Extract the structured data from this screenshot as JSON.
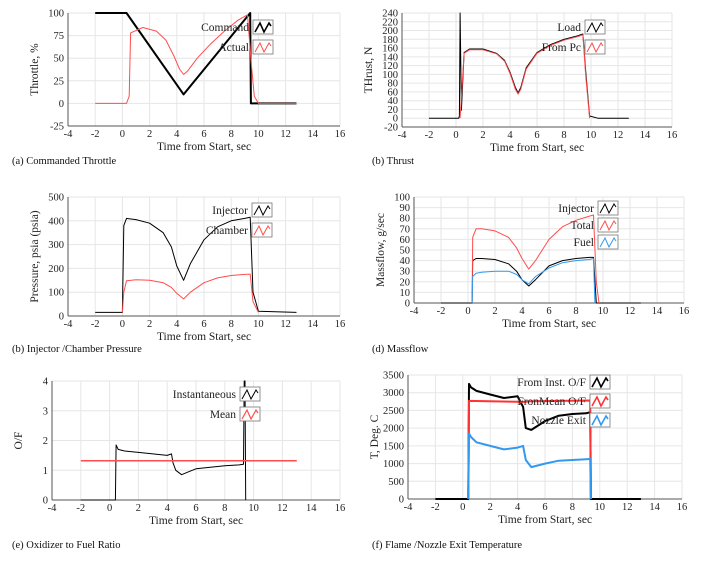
{
  "panels": [
    {
      "caption": "(a) Commanded Throttle",
      "chart_data": {
        "type": "line",
        "xlabel": "Time from  Start, sec",
        "ylabel": "Throttle, %",
        "xlim": [
          -4,
          16
        ],
        "ylim": [
          -25,
          100
        ],
        "xticks": [
          "-4",
          "-2",
          "0",
          "2",
          "4",
          "6",
          "8",
          "10",
          "12",
          "14",
          "16"
        ],
        "yticks": [
          "-25",
          "0",
          "25",
          "50",
          "75",
          "100"
        ],
        "series": [
          {
            "name": "Command",
            "color": "#000000",
            "width": 2,
            "x": [
              -2,
              0.3,
              4.5,
              9.4,
              9.45,
              12.8
            ],
            "y": [
              100,
              100,
              10,
              100,
              0,
              0
            ]
          },
          {
            "name": "Actual",
            "color": "#ff4d4d",
            "width": 1,
            "x": [
              -2,
              0.3,
              0.5,
              0.6,
              1.5,
              2.5,
              3.2,
              3.8,
              4.2,
              4.5,
              4.8,
              5.5,
              6.5,
              7.5,
              8.5,
              9.2,
              9.5,
              9.7,
              10,
              12.8
            ],
            "y": [
              0,
              0,
              8,
              78,
              84,
              80,
              70,
              52,
              38,
              32,
              36,
              50,
              66,
              80,
              92,
              98,
              40,
              8,
              0,
              0
            ]
          }
        ]
      }
    },
    {
      "caption": "(b) Thrust",
      "chart_data": {
        "type": "line",
        "xlabel": "Time from  Start, sec",
        "ylabel": "THrust, N",
        "xlim": [
          -4,
          16
        ],
        "ylim": [
          -20,
          240
        ],
        "xticks": [
          "-4",
          "-2",
          "0",
          "2",
          "4",
          "6",
          "8",
          "10",
          "12",
          "14",
          "16"
        ],
        "yticks": [
          "-20",
          "0",
          "20",
          "40",
          "60",
          "80",
          "100",
          "120",
          "140",
          "160",
          "180",
          "200",
          "220",
          "240"
        ],
        "series": [
          {
            "name": "Load",
            "color": "#000000",
            "width": 1,
            "x": [
              -2,
              0.2,
              0.25,
              0.3,
              0.4,
              0.6,
              1,
              2,
              3,
              3.6,
              4,
              4.4,
              4.6,
              4.8,
              5.2,
              6,
              7,
              8,
              9,
              9.4,
              9.6,
              9.9,
              10.5,
              12.8
            ],
            "y": [
              0,
              0,
              5,
              240,
              18,
              150,
              158,
              158,
              148,
              132,
              105,
              70,
              58,
              70,
              115,
              150,
              168,
              180,
              188,
              192,
              110,
              5,
              0,
              0
            ]
          },
          {
            "name": "From Pc",
            "color": "#ff4d4d",
            "width": 1,
            "x": [
              0.3,
              0.6,
              1,
              2,
              3,
              3.6,
              4,
              4.4,
              4.6,
              4.8,
              5.2,
              6,
              7,
              8,
              9,
              9.4,
              9.6,
              9.9
            ],
            "y": [
              0,
              148,
              156,
              156,
              147,
              130,
              102,
              66,
              55,
              66,
              112,
              148,
              166,
              178,
              186,
              190,
              100,
              0
            ]
          }
        ]
      }
    },
    {
      "caption": "(b) Injector /Chamber Pressure",
      "chart_data": {
        "type": "line",
        "xlabel": "Time from  Start, sec",
        "ylabel": "Pressure, psia (psia)",
        "xlim": [
          -4,
          16
        ],
        "ylim": [
          0,
          500
        ],
        "xticks": [
          "-4",
          "-2",
          "0",
          "2",
          "4",
          "6",
          "8",
          "10",
          "12",
          "14",
          "16"
        ],
        "yticks": [
          "0",
          "100",
          "200",
          "300",
          "400",
          "500"
        ],
        "series": [
          {
            "name": "Injector",
            "color": "#000000",
            "width": 1,
            "x": [
              -2,
              0,
              0.1,
              0.3,
              1,
              2,
              3,
              3.6,
              4,
              4.5,
              5,
              6,
              7,
              8,
              9,
              9.4,
              9.6,
              10,
              12.8
            ],
            "y": [
              15,
              15,
              380,
              410,
              405,
              390,
              350,
              290,
              210,
              150,
              220,
              320,
              375,
              400,
              410,
              415,
              100,
              20,
              15
            ]
          },
          {
            "name": "Chamber",
            "color": "#ff4d4d",
            "width": 1,
            "x": [
              0,
              0.1,
              0.3,
              1,
              2,
              3,
              3.6,
              4,
              4.5,
              5,
              6,
              7,
              8,
              9,
              9.4,
              9.6,
              10
            ],
            "y": [
              15,
              100,
              148,
              152,
              150,
              140,
              120,
              95,
              72,
              100,
              140,
              160,
              170,
              175,
              176,
              60,
              15
            ]
          }
        ]
      }
    },
    {
      "caption": "(d) Massflow",
      "chart_data": {
        "type": "line",
        "xlabel": "Time from  Start, sec",
        "ylabel": "Massflow, g/sec",
        "xlim": [
          -4,
          16
        ],
        "ylim": [
          0,
          100
        ],
        "xticks": [
          "-4",
          "-2",
          "0",
          "2",
          "4",
          "6",
          "8",
          "10",
          "12",
          "14",
          "16"
        ],
        "yticks": [
          "0",
          "10",
          "20",
          "30",
          "40",
          "50",
          "60",
          "70",
          "80",
          "90",
          "100"
        ],
        "series": [
          {
            "name": "Injector",
            "color": "#000000",
            "width": 1,
            "x": [
              -2,
              0.3,
              0.35,
              0.6,
              1,
              2,
              3,
              3.6,
              4,
              4.5,
              5,
              6,
              7,
              8,
              9,
              9.3,
              9.5,
              10,
              12.8
            ],
            "y": [
              0,
              0,
              40,
              42,
              42,
              41,
              37,
              30,
              22,
              16,
              22,
              35,
              40,
              42,
              43,
              43,
              0,
              0,
              0
            ]
          },
          {
            "name": "Total",
            "color": "#ff4d4d",
            "width": 1,
            "x": [
              0.3,
              0.35,
              0.6,
              1,
              2,
              3,
              3.6,
              4,
              4.5,
              5,
              6,
              7,
              8,
              9,
              9.3,
              9.5,
              9.7
            ],
            "y": [
              0,
              62,
              70,
              70,
              68,
              62,
              52,
              42,
              32,
              40,
              60,
              72,
              78,
              82,
              83,
              20,
              0
            ]
          },
          {
            "name": "Fuel",
            "color": "#3399ee",
            "width": 1,
            "x": [
              0.3,
              0.35,
              0.6,
              1,
              2,
              3,
              3.6,
              4,
              4.5,
              5,
              6,
              7,
              8,
              9,
              9.3,
              9.4
            ],
            "y": [
              0,
              25,
              28,
              29,
              30,
              30,
              27,
              22,
              18,
              25,
              33,
              38,
              40,
              41,
              42,
              0
            ]
          }
        ]
      }
    },
    {
      "caption": "(e) Oxidizer to Fuel Ratio",
      "chart_data": {
        "type": "line",
        "xlabel": "Time from  Start, sec",
        "ylabel": "O/F",
        "xlim": [
          -4,
          16
        ],
        "ylim": [
          0,
          4
        ],
        "xticks": [
          "-4",
          "-2",
          "0",
          "2",
          "4",
          "6",
          "8",
          "10",
          "12",
          "14",
          "16"
        ],
        "yticks": [
          "0",
          "1",
          "2",
          "3",
          "4"
        ],
        "series": [
          {
            "name": "Instantaneous",
            "color": "#000000",
            "width": 1,
            "x": [
              -2,
              0.4,
              0.45,
              0.6,
              1,
              2,
              3,
              4,
              4.3,
              4.4,
              4.6,
              5,
              5.5,
              6,
              7,
              8,
              9,
              9.3,
              9.35,
              9.4,
              9.45
            ],
            "y": [
              0,
              0,
              1.85,
              1.7,
              1.65,
              1.6,
              1.55,
              1.5,
              1.55,
              1.25,
              1.0,
              0.85,
              0.95,
              1.05,
              1.1,
              1.15,
              1.18,
              1.2,
              4,
              4,
              0
            ]
          },
          {
            "name": "Mean",
            "color": "#ff4d4d",
            "width": 1.5,
            "x": [
              -2,
              13
            ],
            "y": [
              1.32,
              1.32
            ]
          }
        ]
      }
    },
    {
      "caption": "(f) Flame /Nozzle Exit Temperature",
      "chart_data": {
        "type": "line",
        "xlabel": "Time from  Start, sec",
        "ylabel": "T, Deg. C",
        "xlim": [
          -4,
          16
        ],
        "ylim": [
          0,
          3500
        ],
        "xticks": [
          "-4",
          "-2",
          "0",
          "2",
          "4",
          "6",
          "8",
          "10",
          "12",
          "14",
          "16"
        ],
        "yticks": [
          "0",
          "500",
          "1000",
          "1500",
          "2000",
          "2500",
          "3000",
          "3500"
        ],
        "series": [
          {
            "name": "From Inst. O/F",
            "color": "#000000",
            "width": 2,
            "x": [
              -2,
              0.4,
              0.45,
              0.6,
              1,
              2,
              3,
              4,
              4.4,
              4.6,
              5,
              6,
              7,
              8,
              9,
              9.3,
              9.35,
              13
            ],
            "y": [
              0,
              0,
              3250,
              3150,
              3050,
              2950,
              2850,
              2900,
              2600,
              2000,
              1950,
              2200,
              2350,
              2400,
              2420,
              2450,
              0,
              0
            ]
          },
          {
            "name": "FronMean O/F",
            "color": "#ff3333",
            "width": 2,
            "x": [
              0.4,
              0.45,
              4.5,
              5,
              9.3,
              9.35
            ],
            "y": [
              0,
              2770,
              2740,
              2760,
              2780,
              0
            ]
          },
          {
            "name": "Nozzle Exit",
            "color": "#3399ee",
            "width": 2,
            "x": [
              0.4,
              0.45,
              0.6,
              1,
              2,
              3,
              4,
              4.4,
              4.6,
              5,
              6,
              7,
              8,
              9,
              9.3,
              9.35
            ],
            "y": [
              0,
              1850,
              1750,
              1600,
              1500,
              1400,
              1450,
              1500,
              1100,
              900,
              1000,
              1080,
              1100,
              1120,
              1130,
              0
            ]
          }
        ]
      }
    }
  ]
}
